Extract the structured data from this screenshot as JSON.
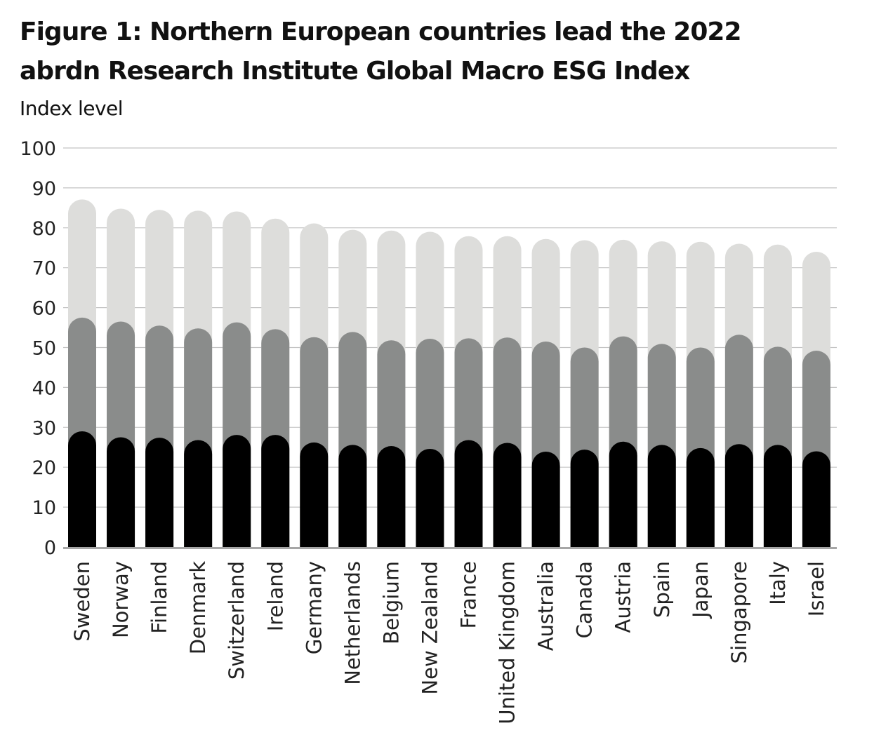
{
  "chart_data": {
    "type": "bar",
    "stacked": true,
    "title": "Figure 1: Northern European countries lead the 2022 abrdn Research Institute Global Macro ESG Index",
    "ylabel": "Index level",
    "ylim": [
      0,
      100
    ],
    "yticks": [
      "0",
      "10",
      "20",
      "30",
      "40",
      "50",
      "60",
      "70",
      "80",
      "90",
      "100"
    ],
    "grid": true,
    "categories": [
      "Sweden",
      "Norway",
      "Finland",
      "Denmark",
      "Switzerland",
      "Ireland",
      "Germany",
      "Netherlands",
      "Belgium",
      "New Zealand",
      "France",
      "United Kingdom",
      "Australia",
      "Canada",
      "Austria",
      "Spain",
      "Japan",
      "Singapore",
      "Italy",
      "Israel"
    ],
    "series": [
      {
        "color": "#000000",
        "values": [
          29,
          27.5,
          27.4,
          26.8,
          28.1,
          28.1,
          26.2,
          25.6,
          25.3,
          24.6,
          26.8,
          26.1,
          23.9,
          24.4,
          26.4,
          25.6,
          24.8,
          25.8,
          25.6,
          24.0
        ]
      },
      {
        "color": "#8a8c8b",
        "values": [
          28.5,
          29.0,
          28.1,
          28.0,
          28.2,
          26.5,
          26.4,
          28.3,
          26.5,
          27.6,
          25.5,
          26.4,
          27.6,
          25.6,
          26.4,
          25.3,
          25.2,
          27.4,
          24.6,
          25.2
        ]
      },
      {
        "color": "#dddddb",
        "values": [
          29.6,
          28.3,
          29.0,
          29.5,
          27.8,
          27.7,
          28.5,
          25.6,
          27.5,
          26.8,
          25.6,
          25.4,
          25.7,
          26.9,
          24.2,
          25.7,
          26.5,
          22.8,
          25.6,
          24.8
        ]
      }
    ]
  }
}
